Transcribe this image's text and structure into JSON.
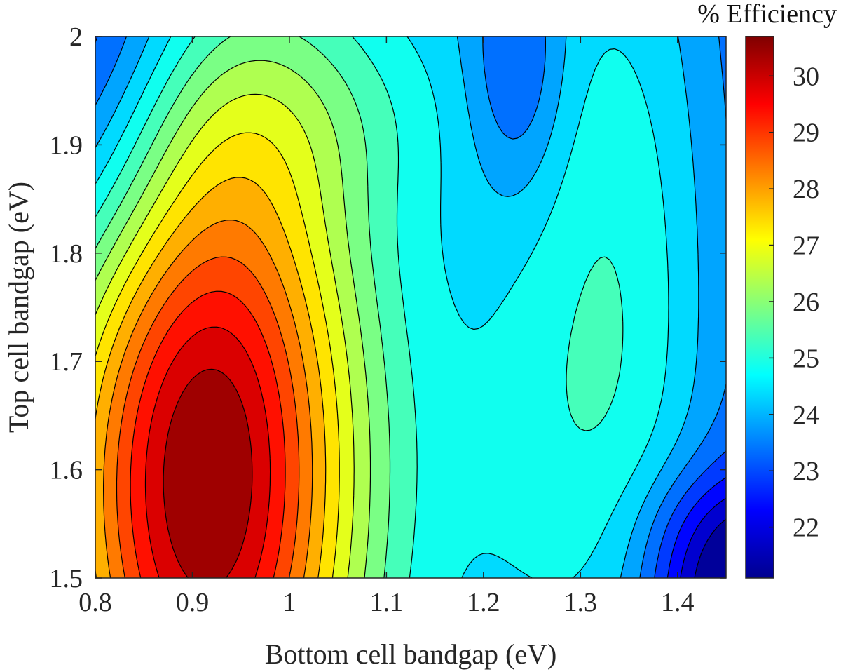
{
  "chart_data": {
    "type": "contour",
    "xlabel": "Bottom cell bandgap (eV)",
    "ylabel": "Top cell bandgap (eV)",
    "colorbar_title": "% Efficiency",
    "xlim": [
      0.8,
      1.45
    ],
    "ylim": [
      1.5,
      2.0
    ],
    "clim": [
      21.1,
      30.7
    ],
    "x_ticks": [
      0.8,
      0.9,
      1.0,
      1.1,
      1.2,
      1.3,
      1.4
    ],
    "x_tick_labels": [
      "0.8",
      "0.9",
      "1",
      "1.1",
      "1.2",
      "1.3",
      "1.4"
    ],
    "y_ticks": [
      1.5,
      1.6,
      1.7,
      1.8,
      1.9,
      2.0
    ],
    "y_tick_labels": [
      "1.5",
      "1.6",
      "1.7",
      "1.8",
      "1.9",
      "2"
    ],
    "colorbar_ticks": [
      22,
      23,
      24,
      25,
      26,
      27,
      28,
      29,
      30
    ],
    "colorbar_tick_labels": [
      "22",
      "23",
      "24",
      "25",
      "26",
      "27",
      "28",
      "29",
      "30"
    ],
    "contour_levels": [
      21.6,
      22.1,
      22.6,
      23.1,
      23.6,
      24.1,
      24.6,
      25.1,
      25.6,
      26.1,
      26.6,
      27.1,
      27.6,
      28.1,
      28.6,
      29.1,
      29.6,
      30.1
    ],
    "colormap": "jet",
    "efficiency_peak": {
      "x": 0.91,
      "y": 1.6,
      "value": 30.6
    }
  }
}
